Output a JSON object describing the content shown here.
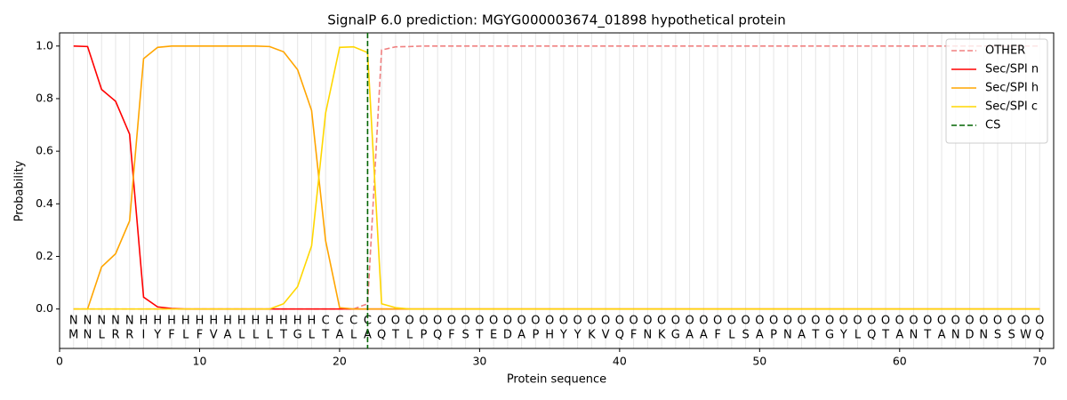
{
  "chart_data": {
    "type": "line",
    "title": "SignalP 6.0 prediction: MGYG000003674_01898 hypothetical protein",
    "x_label": "Protein sequence",
    "y_label": "Probability",
    "xlim": [
      0,
      71
    ],
    "ylim": [
      -0.15,
      1.05
    ],
    "xticks": [
      0,
      10,
      20,
      30,
      40,
      50,
      60,
      70
    ],
    "yticks": [
      {
        "value": 0,
        "label": "0.0"
      },
      0.2,
      0.4,
      0.6,
      0.8,
      {
        "value": 1,
        "label": "1.0"
      }
    ],
    "legend": "upper right",
    "x": [
      1,
      2,
      3,
      4,
      5,
      6,
      7,
      8,
      9,
      10,
      11,
      12,
      13,
      14,
      15,
      16,
      17,
      18,
      19,
      20,
      21,
      22,
      23,
      24,
      25,
      26,
      27,
      28,
      29,
      30,
      31,
      32,
      33,
      34,
      35,
      36,
      37,
      38,
      39,
      40,
      41,
      42,
      43,
      44,
      45,
      46,
      47,
      48,
      49,
      50,
      51,
      52,
      53,
      54,
      55,
      56,
      57,
      58,
      59,
      60,
      61,
      62,
      63,
      64,
      65,
      66,
      67,
      68,
      69,
      70
    ],
    "residues": [
      "M",
      "N",
      "L",
      "R",
      "R",
      "I",
      "Y",
      "F",
      "L",
      "F",
      "V",
      "A",
      "L",
      "L",
      "L",
      "T",
      "G",
      "L",
      "T",
      "A",
      "L",
      "A",
      "Q",
      "T",
      "L",
      "P",
      "Q",
      "F",
      "S",
      "T",
      "E",
      "D",
      "A",
      "P",
      "H",
      "Y",
      "Y",
      "K",
      "V",
      "Q",
      "F",
      "N",
      "K",
      "G",
      "A",
      "A",
      "F",
      "L",
      "S",
      "A",
      "P",
      "N",
      "A",
      "T",
      "G",
      "Y",
      "L",
      "Q",
      "T",
      "A",
      "N",
      "T",
      "A",
      "N",
      "D",
      "N",
      "S",
      "S",
      "W",
      "Q"
    ],
    "region_labels": [
      "N",
      "N",
      "N",
      "N",
      "N",
      "H",
      "H",
      "H",
      "H",
      "H",
      "H",
      "H",
      "H",
      "H",
      "H",
      "H",
      "H",
      "H",
      "C",
      "C",
      "C",
      "C",
      "O",
      "O",
      "O",
      "O",
      "O",
      "O",
      "O",
      "O",
      "O",
      "O",
      "O",
      "O",
      "O",
      "O",
      "O",
      "O",
      "O",
      "O",
      "O",
      "O",
      "O",
      "O",
      "O",
      "O",
      "O",
      "O",
      "O",
      "O",
      "O",
      "O",
      "O",
      "O",
      "O",
      "O",
      "O",
      "O",
      "O",
      "O",
      "O",
      "O",
      "O",
      "O",
      "O",
      "O",
      "O",
      "O",
      "O",
      "O"
    ],
    "region_colors": {
      "N": "#ff0000",
      "H": "#ffa500",
      "C": "#ffd700",
      "O": "#808080"
    },
    "series": [
      {
        "name": "OTHER",
        "color": "#f08080",
        "dashed": true,
        "values": [
          0,
          0,
          0,
          0,
          0,
          0,
          0,
          0,
          0,
          0,
          0,
          0,
          0,
          0,
          0,
          0,
          0,
          0,
          0,
          0,
          0,
          0.02,
          0.985,
          0.997,
          0.998,
          1,
          1,
          1,
          1,
          1,
          1,
          1,
          1,
          1,
          1,
          1,
          1,
          1,
          1,
          1,
          1,
          1,
          1,
          1,
          1,
          1,
          1,
          1,
          1,
          1,
          1,
          1,
          1,
          1,
          1,
          1,
          1,
          1,
          1,
          1,
          1,
          1,
          1,
          1,
          1,
          1,
          1,
          1,
          1,
          1
        ]
      },
      {
        "name": "Sec/SPI n",
        "color": "#ff0000",
        "values": [
          1,
          0.998,
          0.835,
          0.79,
          0.665,
          0.045,
          0.008,
          0.002,
          0,
          0,
          0,
          0,
          0,
          0,
          0,
          0,
          0,
          0,
          0,
          0,
          0,
          0,
          0,
          0,
          0,
          0,
          0,
          0,
          0,
          0,
          0,
          0,
          0,
          0,
          0,
          0,
          0,
          0,
          0,
          0,
          0,
          0,
          0,
          0,
          0,
          0,
          0,
          0,
          0,
          0,
          0,
          0,
          0,
          0,
          0,
          0,
          0,
          0,
          0,
          0,
          0,
          0,
          0,
          0,
          0,
          0,
          0,
          0,
          0,
          0
        ]
      },
      {
        "name": "Sec/SPI h",
        "color": "#ffa500",
        "values": [
          0,
          0,
          0.16,
          0.21,
          0.335,
          0.952,
          0.995,
          1,
          1,
          1,
          1,
          1,
          1,
          1,
          0.998,
          0.978,
          0.91,
          0.755,
          0.26,
          0.005,
          0,
          0,
          0,
          0,
          0,
          0,
          0,
          0,
          0,
          0,
          0,
          0,
          0,
          0,
          0,
          0,
          0,
          0,
          0,
          0,
          0,
          0,
          0,
          0,
          0,
          0,
          0,
          0,
          0,
          0,
          0,
          0,
          0,
          0,
          0,
          0,
          0,
          0,
          0,
          0,
          0,
          0,
          0,
          0,
          0,
          0,
          0,
          0,
          0,
          0
        ]
      },
      {
        "name": "Sec/SPI c",
        "color": "#ffd700",
        "values": [
          0,
          0,
          0,
          0,
          0,
          0,
          0,
          0,
          0,
          0,
          0,
          0,
          0,
          0,
          0,
          0.02,
          0.085,
          0.24,
          0.745,
          0.995,
          0.997,
          0.975,
          0.02,
          0.005,
          0,
          0,
          0,
          0,
          0,
          0,
          0,
          0,
          0,
          0,
          0,
          0,
          0,
          0,
          0,
          0,
          0,
          0,
          0,
          0,
          0,
          0,
          0,
          0,
          0,
          0,
          0,
          0,
          0,
          0,
          0,
          0,
          0,
          0,
          0,
          0,
          0,
          0,
          0,
          0,
          0,
          0,
          0,
          0,
          0,
          0
        ]
      }
    ],
    "cs": {
      "name": "CS",
      "x": 22,
      "color": "#006400"
    }
  }
}
